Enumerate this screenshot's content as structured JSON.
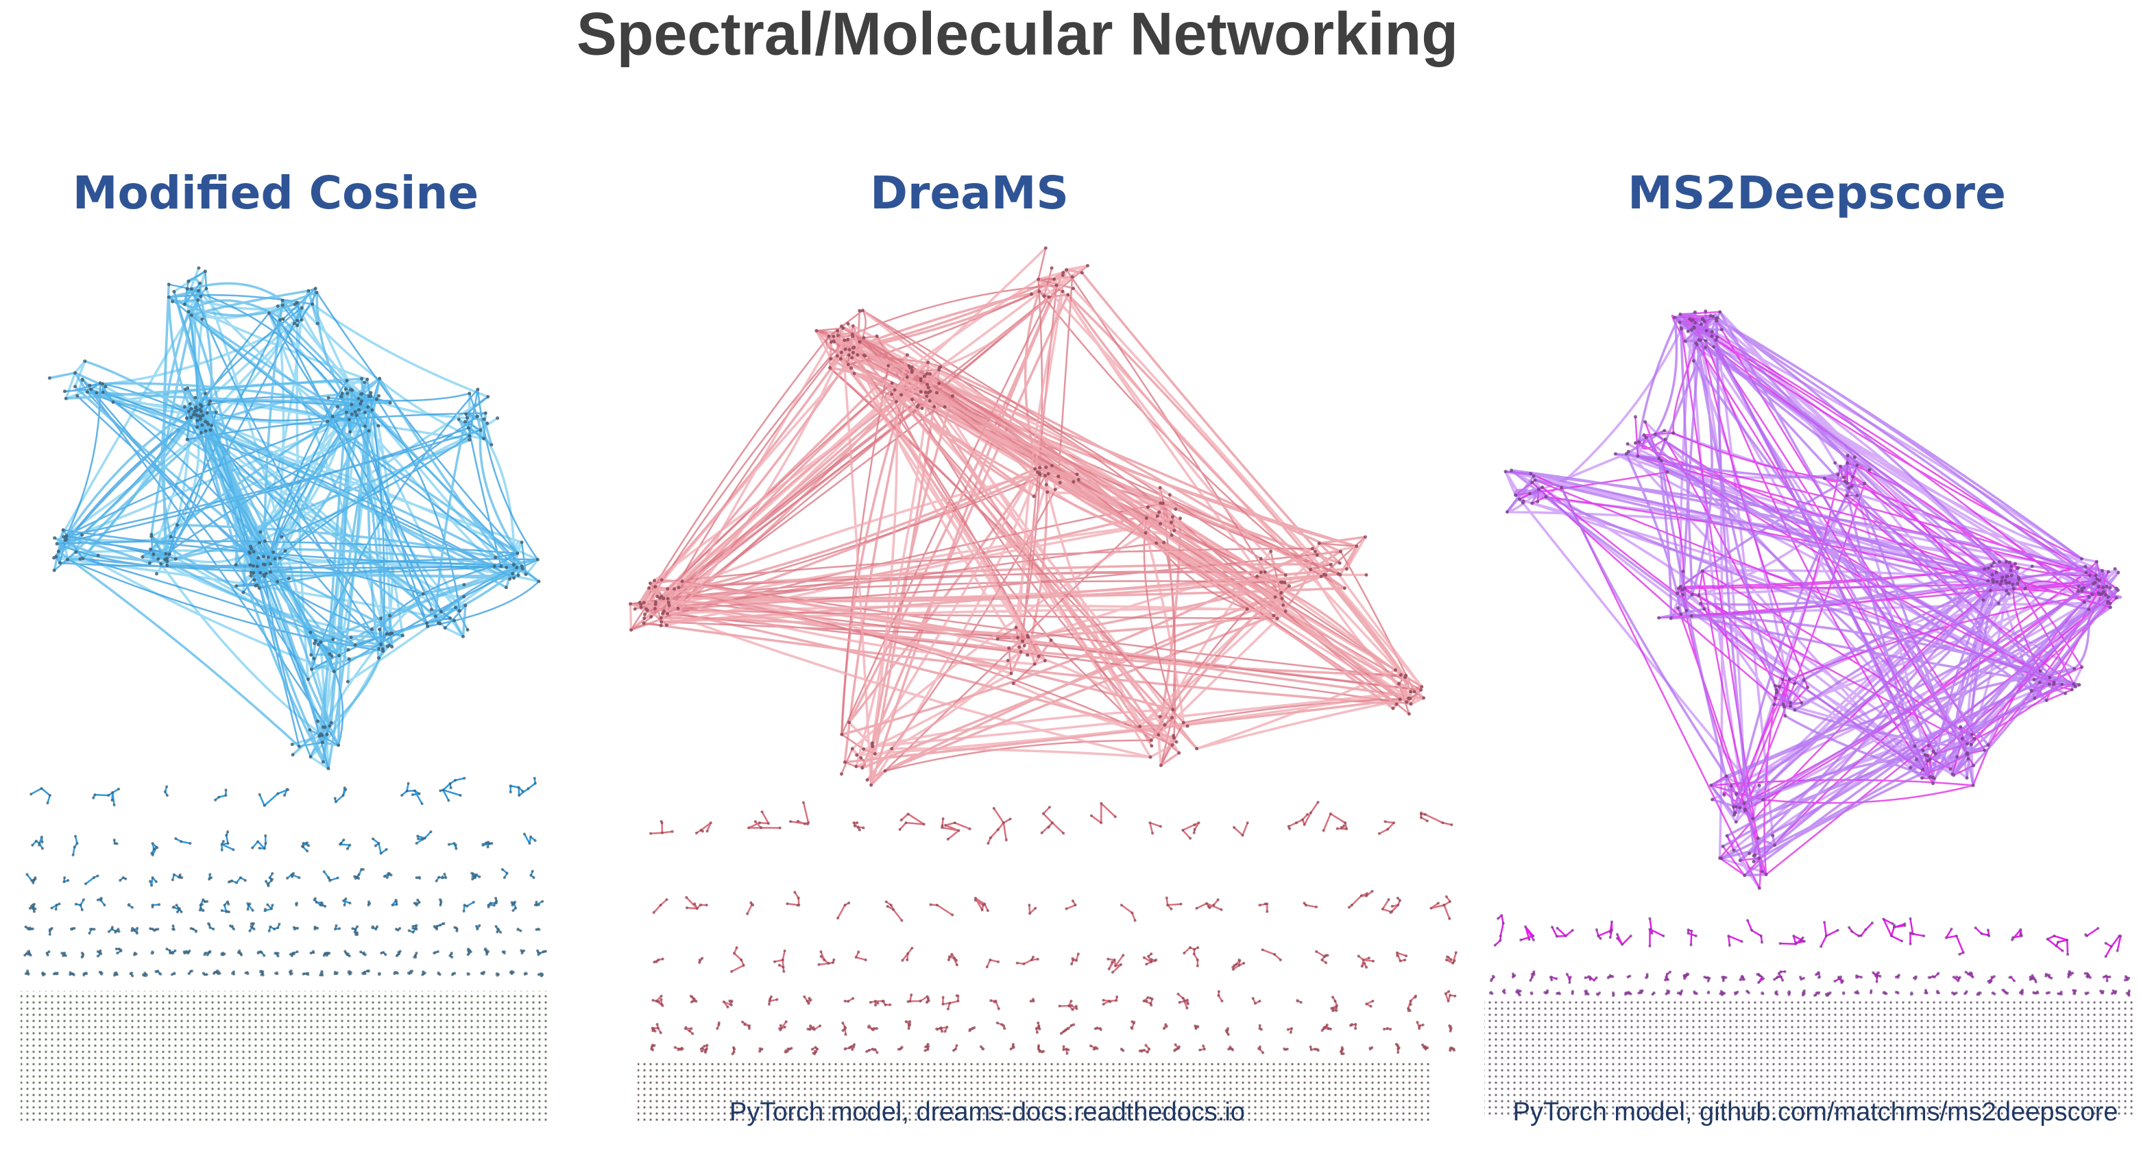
{
  "header": {
    "title": "Spectral/Molecular Networking"
  },
  "panels": [
    {
      "title": "Modified Cosine"
    },
    {
      "title": "DreaMS",
      "caption": "PyTorch model, dreams-docs.readthedocs.io"
    },
    {
      "title": "MS2Deepscore",
      "caption": "PyTorch model, github.com/matchms/ms2deepscore"
    }
  ]
}
